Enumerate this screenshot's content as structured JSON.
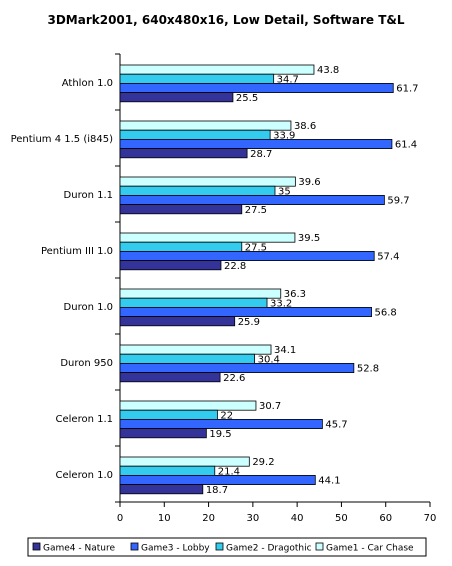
{
  "chart_data": {
    "type": "bar",
    "orientation": "horizontal",
    "title": "3DMark2001, 640x480x16, Low Detail, Software T&L",
    "categories": [
      "Athlon 1.0",
      "Pentium 4 1.5 (i845)",
      "Duron 1.1",
      "Pentium III 1.0",
      "Duron 1.0",
      "Duron 950",
      "Celeron 1.1",
      "Celeron 1.0"
    ],
    "series": [
      {
        "name": "Game1 - Car Chase",
        "color": "#ccffff",
        "values": [
          43.8,
          38.6,
          39.6,
          39.5,
          36.3,
          34.1,
          30.7,
          29.2
        ]
      },
      {
        "name": "Game2 - Dragothic",
        "color": "#33ccee",
        "values": [
          34.7,
          33.9,
          35,
          27.5,
          33.2,
          30.4,
          22,
          21.4
        ]
      },
      {
        "name": "Game3 - Lobby",
        "color": "#3366ff",
        "values": [
          61.7,
          61.4,
          59.7,
          57.4,
          56.8,
          52.8,
          45.7,
          44.1
        ]
      },
      {
        "name": "Game4 - Nature",
        "color": "#333399",
        "values": [
          25.5,
          28.7,
          27.5,
          22.8,
          25.9,
          22.6,
          19.5,
          18.7
        ]
      }
    ],
    "legend_order": [
      "Game4 - Nature",
      "Game3 - Lobby",
      "Game2 - Dragothic",
      "Game1 - Car Chase"
    ],
    "xlim": [
      0,
      70
    ],
    "xticks": [
      0,
      10,
      20,
      30,
      40,
      50,
      60,
      70
    ],
    "xlabel": "",
    "ylabel": "",
    "grid": false,
    "legend_position": "bottom"
  }
}
